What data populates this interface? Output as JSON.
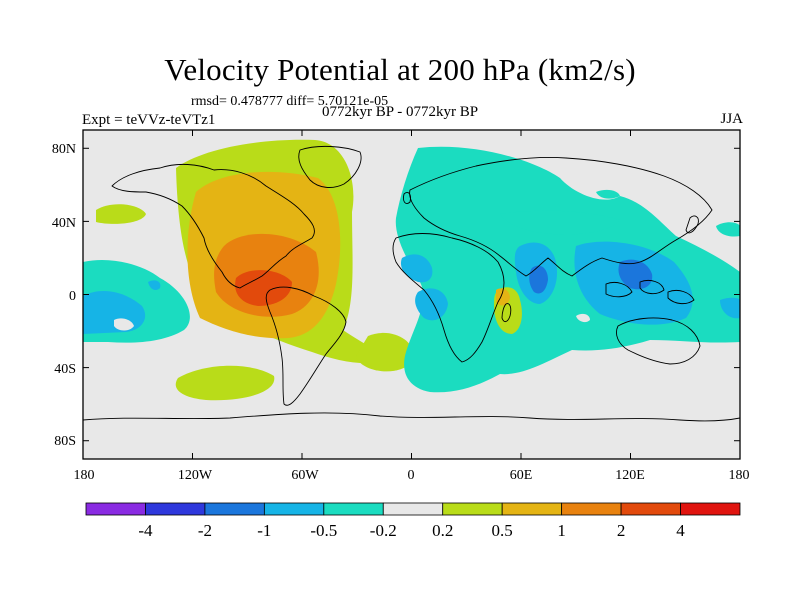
{
  "title": "Velocity Potential at 200 hPa (km2/s)",
  "stats": "rmsd= 0.478777 diff= 5.70121e-05",
  "expt": "Expt = teVVz-teVTz1",
  "period": "0772kyr BP - 0772kyr BP",
  "season": "JJA",
  "axes": {
    "lat_ticks": [
      "80N",
      "40N",
      "0",
      "40S",
      "80S"
    ],
    "lat_values": [
      80,
      40,
      0,
      -40,
      -80
    ],
    "lon_ticks": [
      "180",
      "120W",
      "60W",
      "0",
      "60E",
      "120E",
      "180"
    ],
    "lon_values": [
      -180,
      -120,
      -60,
      0,
      60,
      120,
      180
    ],
    "lat_range": [
      -90,
      90
    ],
    "lon_range": [
      -180,
      180
    ]
  },
  "colorbar": {
    "colors": [
      "#8a2be2",
      "#2e38dc",
      "#1b76dc",
      "#16b4e6",
      "#1bdcc0",
      "#e8e8e8",
      "#b9dc19",
      "#e4b414",
      "#e8820f",
      "#e24a0c",
      "#e0140f"
    ],
    "labels": [
      "-4",
      "-2",
      "-1",
      "-0.5",
      "-0.2",
      "0.2",
      "0.5",
      "1",
      "2",
      "4"
    ]
  },
  "map": {
    "background": "#e8e8e8",
    "fields": [
      {
        "level": "0.2",
        "color": "#b9dc19",
        "region": "north-america-broad"
      },
      {
        "level": "0.2",
        "color": "#b9dc19",
        "region": "south-atlantic"
      },
      {
        "level": "0.2",
        "color": "#b9dc19",
        "region": "south-pacific"
      },
      {
        "level": "0.2",
        "color": "#b9dc19",
        "region": "north-pacific"
      },
      {
        "level": "0.5",
        "color": "#e4b414",
        "region": "north-america"
      },
      {
        "level": "1",
        "color": "#e8820f",
        "region": "central-america"
      },
      {
        "level": "2",
        "color": "#e24a0c",
        "region": "caribbean"
      },
      {
        "level": "-0.2",
        "color": "#1bdcc0",
        "region": "eurasia-indian-ocean"
      },
      {
        "level": "-0.2",
        "color": "#1bdcc0",
        "region": "east-pacific"
      },
      {
        "level": "-0.5",
        "color": "#16b4e6",
        "region": "maritime-continent"
      },
      {
        "level": "-0.5",
        "color": "#16b4e6",
        "region": "central-africa"
      },
      {
        "level": "-0.5",
        "color": "#16b4e6",
        "region": "india"
      },
      {
        "level": "-0.5",
        "color": "#16b4e6",
        "region": "east-pacific-core"
      },
      {
        "level": "-1",
        "color": "#1b76dc",
        "region": "indonesia-core"
      },
      {
        "level": "0.2",
        "color": "#b9dc19",
        "region": "madagascar"
      },
      {
        "level": "0.5",
        "color": "#e4b414",
        "region": "madagascar-core"
      }
    ]
  }
}
